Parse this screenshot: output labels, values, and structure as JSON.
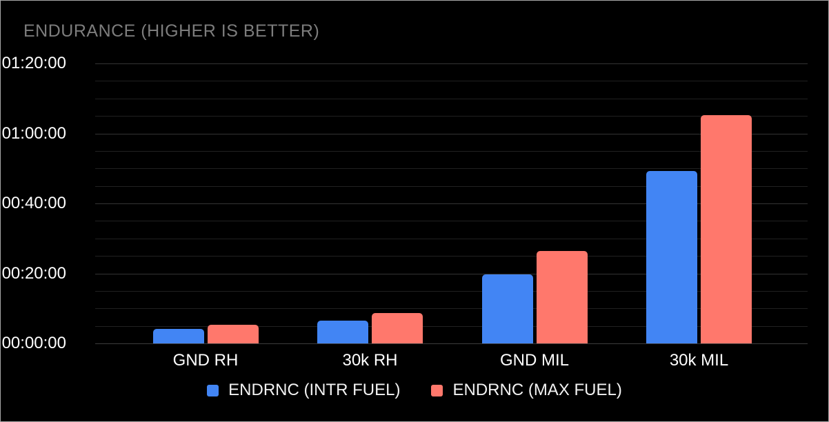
{
  "window": {
    "background": "#000000",
    "border_color": "#a8a8a8"
  },
  "title": {
    "text": "ENDURANCE (HIGHER IS BETTER)",
    "color": "#7d7d7d"
  },
  "colors": {
    "background": "#000000",
    "title_text": "#7d7d7d",
    "axis_label_text": "#ffffff",
    "legend_text": "#f2f2f2",
    "grid_major": "#343434",
    "grid_minor": "#212121",
    "series_intr_fuel": "#4285f4",
    "series_max_fuel": "#ff786c"
  },
  "chart_data": {
    "type": "bar",
    "title": "ENDURANCE (HIGHER IS BETTER)",
    "categories": [
      "GND RH",
      "30k RH",
      "GND MIL",
      "30k MIL"
    ],
    "series": [
      {
        "name": "ENDRNC (INTR FUEL)",
        "color": "#4285f4",
        "values_hms": [
          "00:04:05",
          "00:06:30",
          "00:19:40",
          "00:49:20"
        ],
        "values_minutes": [
          4.08,
          6.5,
          19.67,
          49.33
        ]
      },
      {
        "name": "ENDRNC (MAX FUEL)",
        "color": "#ff786c",
        "values_hms": [
          "00:05:15",
          "00:08:40",
          "00:26:30",
          "01:05:20"
        ],
        "values_minutes": [
          5.25,
          8.67,
          26.5,
          65.33
        ]
      }
    ],
    "xlabel": "",
    "ylabel": "",
    "y_axis": {
      "tick_labels": [
        "00:00:00",
        "00:20:00",
        "00:40:00",
        "01:00:00",
        "01:20:00"
      ],
      "tick_minutes": [
        0,
        20,
        40,
        60,
        80
      ],
      "max_minutes": 80,
      "minor_step_minutes": 5
    },
    "grid": true,
    "legend_position": "bottom"
  }
}
